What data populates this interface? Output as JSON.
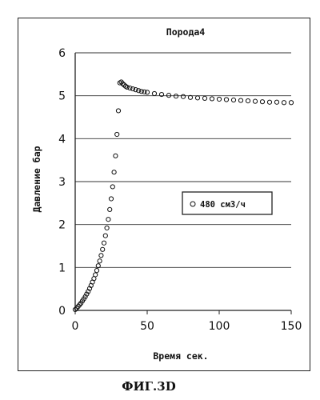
{
  "chart_data": {
    "type": "scatter",
    "title": "Порода4",
    "xlabel": "Время сек.",
    "ylabel": "Давление бар",
    "xlim": [
      0,
      150
    ],
    "ylim": [
      0,
      6
    ],
    "xticks": [
      "0",
      "50",
      "100",
      "150"
    ],
    "yticks": [
      "0",
      "1",
      "2",
      "3",
      "4",
      "5",
      "6"
    ],
    "grid": "horizontal",
    "legend_position": "center-right",
    "marker": "open-circle",
    "series": [
      {
        "name": "480 см3/ч",
        "x": [
          0,
          1,
          2,
          3,
          4,
          5,
          6,
          7,
          8,
          9,
          10,
          11,
          12,
          13,
          14,
          15,
          16,
          17,
          18,
          19,
          20,
          21,
          22,
          23,
          24,
          25,
          26,
          27,
          28,
          29,
          30,
          31,
          32,
          33,
          34,
          35,
          36,
          38,
          40,
          42,
          44,
          46,
          48,
          50,
          55,
          60,
          65,
          70,
          75,
          80,
          85,
          90,
          95,
          100,
          105,
          110,
          115,
          120,
          125,
          130,
          135,
          140,
          145,
          150
        ],
        "y": [
          0.02,
          0.05,
          0.09,
          0.13,
          0.17,
          0.22,
          0.27,
          0.32,
          0.38,
          0.44,
          0.51,
          0.58,
          0.66,
          0.74,
          0.83,
          0.93,
          1.04,
          1.15,
          1.28,
          1.42,
          1.57,
          1.74,
          1.92,
          2.12,
          2.35,
          2.6,
          2.88,
          3.22,
          3.6,
          4.1,
          4.65,
          5.3,
          5.32,
          5.28,
          5.25,
          5.22,
          5.2,
          5.18,
          5.16,
          5.14,
          5.12,
          5.1,
          5.09,
          5.08,
          5.05,
          5.03,
          5.01,
          4.99,
          4.98,
          4.96,
          4.95,
          4.94,
          4.93,
          4.92,
          4.91,
          4.9,
          4.89,
          4.88,
          4.87,
          4.86,
          4.85,
          4.85,
          4.84,
          4.84
        ]
      }
    ]
  },
  "figure": {
    "caption": "ФИГ.3D"
  }
}
